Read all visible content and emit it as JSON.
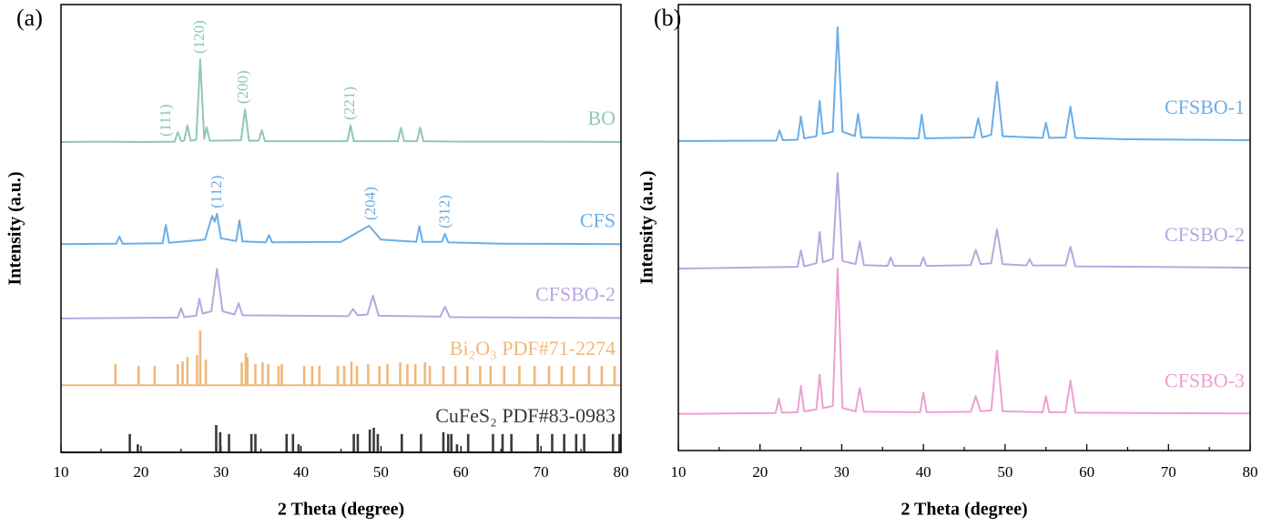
{
  "chart_data": [
    {
      "type": "line",
      "panel_label": "(a)",
      "x_label": "2 Theta (degree)",
      "y_label": "Intensity (a.u.)",
      "xlim": [
        10,
        80
      ],
      "xticks": [
        10,
        20,
        30,
        40,
        50,
        60,
        70,
        80
      ],
      "ylim": [
        0,
        100
      ],
      "series": [
        {
          "name": "BO",
          "color": "#8fc9b0",
          "x": [
            10,
            15,
            20,
            24.2,
            24.6,
            25,
            25.4,
            25.8,
            26.2,
            26.9,
            27.4,
            27.9,
            28.2,
            28.6,
            32.5,
            33,
            33.5,
            34.7,
            35.1,
            35.5,
            45.8,
            46.2,
            46.6,
            52.1,
            52.5,
            52.9,
            54.5,
            54.9,
            55.3,
            60,
            70,
            80
          ],
          "values": [
            69.3,
            69.4,
            69.3,
            69.4,
            71.5,
            69.5,
            69.6,
            73,
            69.6,
            69.8,
            87.8,
            70,
            72.6,
            69.6,
            69.7,
            76.6,
            69.6,
            69.6,
            72,
            69.5,
            69.5,
            73,
            69.5,
            69.5,
            72.5,
            69.5,
            69.5,
            72.5,
            69.5,
            69.4,
            69.4,
            69.3
          ],
          "peaks": [
            {
              "label": "(111)",
              "x": 23.2
            },
            {
              "label": "(120)",
              "x": 27.4
            },
            {
              "label": "(200)",
              "x": 32.9
            },
            {
              "label": "(221)",
              "x": 46.2
            }
          ]
        },
        {
          "name": "CFS",
          "color": "#6aaee8",
          "x": [
            10,
            16.9,
            17.3,
            17.7,
            22.7,
            23.1,
            23.5,
            28,
            28.9,
            29.2,
            29.5,
            30,
            31.9,
            32.3,
            32.7,
            35.6,
            36,
            36.4,
            45,
            48.5,
            50,
            54.4,
            54.8,
            55.2,
            57.6,
            58,
            58.4,
            65,
            80
          ],
          "values": [
            46.5,
            46.6,
            48.2,
            46.6,
            46.7,
            50.8,
            46.8,
            47.5,
            52.8,
            51.5,
            53.3,
            47.8,
            47.2,
            51.8,
            47.1,
            46.9,
            48.5,
            46.9,
            47,
            50.6,
            47.5,
            47,
            50.5,
            47,
            47,
            48.8,
            46.9,
            46.6,
            46.5
          ],
          "peaks": [
            {
              "label": "(112)",
              "x": 29.6
            },
            {
              "label": "(204)",
              "x": 48.8
            },
            {
              "label": "(312)",
              "x": 58.1
            }
          ]
        },
        {
          "name": "CFSBO-2",
          "color": "#b9a6e0",
          "x": [
            10,
            24.6,
            25,
            25.4,
            26.9,
            27.3,
            27.7,
            28.8,
            29.5,
            30.2,
            31.7,
            32.2,
            32.7,
            45.9,
            46.5,
            47.1,
            48.3,
            49,
            49.7,
            57.4,
            58,
            58.6,
            80
          ],
          "values": [
            29.9,
            30.1,
            32.2,
            30.2,
            30.5,
            34.3,
            31,
            31.5,
            41,
            31.5,
            30.8,
            33.3,
            30.6,
            30.4,
            32,
            30.6,
            30.8,
            35,
            30.5,
            30.3,
            32.5,
            30.2,
            30
          ]
        },
        {
          "name": "Bi₂O₃ PDF#71-2274",
          "color": "#f0b87a",
          "type": "stick",
          "baseline": 15,
          "x": [
            16.8,
            19.7,
            21.7,
            24.6,
            25.2,
            25.8,
            27,
            27.4,
            28.1,
            32.6,
            33.1,
            33.3,
            34.3,
            35.2,
            35.9,
            37.2,
            37.6,
            40.4,
            41.4,
            42.3,
            44.6,
            45.4,
            46.3,
            47,
            48.4,
            49.8,
            50.8,
            52.4,
            53.3,
            54.3,
            55.5,
            56.1,
            57.8,
            59.3,
            60.8,
            62.4,
            63.7,
            65.4,
            67.3,
            69.2,
            71,
            72.6,
            74.1,
            76,
            77.6,
            79.2
          ],
          "values": [
            19.7,
            19.3,
            19.3,
            19.7,
            20.3,
            21.3,
            21.7,
            27.2,
            20.7,
            20.1,
            22.2,
            21.3,
            19.7,
            20.1,
            19.7,
            19.3,
            19.7,
            19.3,
            19.3,
            19.3,
            19.3,
            19.3,
            20.3,
            19.3,
            19.7,
            19.3,
            19.7,
            20.1,
            19.7,
            19.7,
            20.1,
            19.3,
            19.3,
            19.3,
            19.3,
            19.3,
            19.3,
            19.3,
            19.3,
            19.3,
            19.3,
            19.3,
            19.3,
            19.3,
            19.3,
            19.3
          ]
        },
        {
          "name": "CuFeS₂ PDF#83-0983",
          "color": "#3a3a3a",
          "type": "stick",
          "baseline": 0,
          "x": [
            18.6,
            19.6,
            29.4,
            29.9,
            31,
            33.8,
            34.3,
            38.2,
            39,
            39.7,
            46.6,
            47.1,
            48.6,
            49.1,
            49.6,
            52.6,
            55,
            57.8,
            58.4,
            58.8,
            59.5,
            60.9,
            64,
            65.2,
            66.3,
            69.6,
            71.4,
            72.9,
            74.4,
            75.4,
            79,
            79.8
          ],
          "values": [
            4.1,
            1.8,
            6.1,
            4.5,
            4.1,
            4.1,
            4.1,
            4.1,
            4.1,
            1.8,
            4.1,
            4.1,
            5.1,
            5.5,
            4.1,
            4.1,
            4.1,
            4.5,
            4.1,
            4.1,
            1.8,
            4.1,
            4.1,
            4.1,
            4.1,
            4.1,
            4.1,
            4.1,
            4.1,
            4.1,
            4.1,
            4.1
          ]
        }
      ]
    },
    {
      "type": "line",
      "panel_label": "(b)",
      "x_label": "2 Theta (degree)",
      "y_label": "Intensity (a.u.)",
      "xlim": [
        10,
        80
      ],
      "xticks": [
        10,
        20,
        30,
        40,
        50,
        60,
        70,
        80
      ],
      "ylim": [
        0,
        100
      ],
      "series": [
        {
          "name": "CFSBO-1",
          "color": "#6aaee8",
          "x": [
            10,
            22,
            22.4,
            22.8,
            24.6,
            25,
            25.4,
            26.9,
            27.3,
            27.7,
            28.9,
            29.5,
            30.1,
            31.6,
            32,
            32.4,
            39.4,
            39.8,
            40.2,
            46.2,
            46.7,
            47.2,
            48.3,
            49,
            49.7,
            54.6,
            55,
            55.4,
            57.4,
            58,
            58.6,
            65,
            80
          ],
          "values": [
            69.4,
            69.5,
            71.8,
            69.6,
            69.7,
            74.9,
            70,
            70.5,
            78.4,
            71,
            71.5,
            94.9,
            71.5,
            70.5,
            75.5,
            70.2,
            70,
            75.3,
            70,
            70.2,
            74.5,
            70.2,
            70.8,
            82.7,
            70.5,
            70.1,
            73.5,
            70.1,
            70.2,
            77.1,
            70.1,
            69.8,
            69.6
          ]
        },
        {
          "name": "CFSBO-2",
          "color": "#b9a6e0",
          "x": [
            10,
            24.6,
            25,
            25.4,
            26.9,
            27.3,
            27.7,
            28.9,
            29.5,
            30.1,
            31.7,
            32.2,
            32.7,
            35.6,
            36,
            36.4,
            39.6,
            40,
            40.4,
            45.8,
            46.4,
            47,
            48.3,
            49,
            49.7,
            52.6,
            53,
            53.4,
            57.4,
            58,
            58.6,
            80
          ],
          "values": [
            40.8,
            41.2,
            44.9,
            41.3,
            42,
            49,
            42.2,
            43,
            62.2,
            42.5,
            41.8,
            46.9,
            41.6,
            41.4,
            43.3,
            41.4,
            41.4,
            43.3,
            41.4,
            41.6,
            45,
            41.8,
            42,
            49.6,
            41.8,
            41.5,
            42.9,
            41.5,
            41.5,
            45.7,
            41.3,
            41
          ]
        },
        {
          "name": "CFSBO-3",
          "color": "#ee9fd3",
          "x": [
            10,
            21.9,
            22.3,
            22.7,
            24.6,
            25,
            25.4,
            26.9,
            27.3,
            27.7,
            28.9,
            29.5,
            30.1,
            31.7,
            32.2,
            32.7,
            39.6,
            40,
            40.4,
            45.8,
            46.4,
            47,
            48.3,
            49,
            49.7,
            54.6,
            55,
            55.4,
            57.4,
            58,
            58.6,
            80
          ],
          "values": [
            8.2,
            8.4,
            11.6,
            8.5,
            8.6,
            14.5,
            8.8,
            9.2,
            17,
            9.5,
            10,
            40.8,
            9.5,
            8.8,
            14,
            8.7,
            8.6,
            13,
            8.6,
            8.7,
            12.2,
            8.8,
            9,
            22.4,
            8.8,
            8.6,
            12.2,
            8.6,
            8.6,
            15.7,
            8.5,
            8.3
          ]
        }
      ]
    }
  ]
}
